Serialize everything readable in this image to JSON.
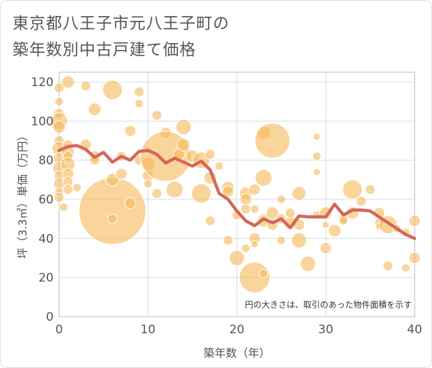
{
  "title_lines": [
    "東京都八王子市元八王子町の",
    "築年数別中古戸建て価格"
  ],
  "note": "円の大きさは、取引のあった物件面積を示す",
  "colors": {
    "bubble_fill": "#f5b95a",
    "bubble_opacity": 0.6,
    "line": "#d4675a",
    "grid": "#d4dce6",
    "plot_border": "#b0b8c4"
  },
  "chart_data": {
    "type": "scatter",
    "title": "東京都八王子市元八王子町の築年数別中古戸建て価格",
    "xlabel": "築年数（年）",
    "ylabel": "坪（3.3㎡）単価（万円）",
    "xlim": [
      0,
      40
    ],
    "ylim": [
      0,
      125
    ],
    "xticks": [
      0,
      10,
      20,
      30,
      40
    ],
    "yticks": [
      0,
      20,
      40,
      60,
      80,
      100,
      120
    ],
    "grid": true,
    "bubbles": [
      {
        "x": 0,
        "y": 117,
        "r": 7
      },
      {
        "x": 0,
        "y": 110,
        "r": 6
      },
      {
        "x": 0,
        "y": 104,
        "r": 7
      },
      {
        "x": 0,
        "y": 100,
        "r": 12
      },
      {
        "x": 0,
        "y": 97,
        "r": 9
      },
      {
        "x": 0,
        "y": 90,
        "r": 7
      },
      {
        "x": 0,
        "y": 86,
        "r": 10
      },
      {
        "x": 0,
        "y": 81,
        "r": 8
      },
      {
        "x": 0,
        "y": 76,
        "r": 9
      },
      {
        "x": 0,
        "y": 72,
        "r": 7
      },
      {
        "x": 0,
        "y": 68,
        "r": 8
      },
      {
        "x": 0,
        "y": 64,
        "r": 6
      },
      {
        "x": 0,
        "y": 61,
        "r": 7
      },
      {
        "x": 0.5,
        "y": 56,
        "r": 6
      },
      {
        "x": 1,
        "y": 120,
        "r": 9
      },
      {
        "x": 1,
        "y": 88,
        "r": 7
      },
      {
        "x": 1,
        "y": 84,
        "r": 9
      },
      {
        "x": 1,
        "y": 82,
        "r": 7
      },
      {
        "x": 1,
        "y": 78,
        "r": 10
      },
      {
        "x": 1,
        "y": 73,
        "r": 8
      },
      {
        "x": 1,
        "y": 69,
        "r": 7
      },
      {
        "x": 1,
        "y": 65,
        "r": 7
      },
      {
        "x": 2,
        "y": 66,
        "r": 6
      },
      {
        "x": 3,
        "y": 118,
        "r": 7
      },
      {
        "x": 3,
        "y": 88,
        "r": 8
      },
      {
        "x": 4,
        "y": 82,
        "r": 8
      },
      {
        "x": 4,
        "y": 80,
        "r": 7
      },
      {
        "x": 4,
        "y": 106,
        "r": 9
      },
      {
        "x": 6,
        "y": 116,
        "r": 14
      },
      {
        "x": 6,
        "y": 54,
        "r": 48
      },
      {
        "x": 6,
        "y": 70,
        "r": 9
      },
      {
        "x": 6,
        "y": 50,
        "r": 7
      },
      {
        "x": 7,
        "y": 82,
        "r": 7
      },
      {
        "x": 7,
        "y": 73,
        "r": 8
      },
      {
        "x": 8,
        "y": 95,
        "r": 8
      },
      {
        "x": 8,
        "y": 58,
        "r": 8
      },
      {
        "x": 9,
        "y": 115,
        "r": 7
      },
      {
        "x": 9,
        "y": 109,
        "r": 6
      },
      {
        "x": 9,
        "y": 80,
        "r": 7
      },
      {
        "x": 10,
        "y": 78,
        "r": 10
      },
      {
        "x": 10,
        "y": 72,
        "r": 8
      },
      {
        "x": 10,
        "y": 68,
        "r": 6
      },
      {
        "x": 11,
        "y": 103,
        "r": 7
      },
      {
        "x": 11,
        "y": 63,
        "r": 7
      },
      {
        "x": 12,
        "y": 94,
        "r": 8
      },
      {
        "x": 12,
        "y": 82,
        "r": 36
      },
      {
        "x": 13,
        "y": 65,
        "r": 12
      },
      {
        "x": 13.5,
        "y": 83,
        "r": 8
      },
      {
        "x": 14,
        "y": 97,
        "r": 11
      },
      {
        "x": 14,
        "y": 88,
        "r": 9
      },
      {
        "x": 15,
        "y": 82,
        "r": 9
      },
      {
        "x": 16,
        "y": 80,
        "r": 12
      },
      {
        "x": 16,
        "y": 63,
        "r": 14
      },
      {
        "x": 17,
        "y": 71,
        "r": 9
      },
      {
        "x": 17,
        "y": 49,
        "r": 7
      },
      {
        "x": 17,
        "y": 83,
        "r": 7
      },
      {
        "x": 18,
        "y": 77,
        "r": 6
      },
      {
        "x": 19,
        "y": 66,
        "r": 9
      },
      {
        "x": 19,
        "y": 64,
        "r": 8
      },
      {
        "x": 19,
        "y": 39,
        "r": 7
      },
      {
        "x": 20,
        "y": 30,
        "r": 11
      },
      {
        "x": 20,
        "y": 52,
        "r": 7
      },
      {
        "x": 21,
        "y": 63,
        "r": 9
      },
      {
        "x": 21,
        "y": 60,
        "r": 8
      },
      {
        "x": 21,
        "y": 55,
        "r": 7
      },
      {
        "x": 21,
        "y": 35,
        "r": 6
      },
      {
        "x": 22,
        "y": 20,
        "r": 22
      },
      {
        "x": 22,
        "y": 40,
        "r": 8
      },
      {
        "x": 22,
        "y": 37,
        "r": 5
      },
      {
        "x": 22,
        "y": 55,
        "r": 6
      },
      {
        "x": 22,
        "y": 65,
        "r": 8
      },
      {
        "x": 23,
        "y": 94,
        "r": 10
      },
      {
        "x": 23,
        "y": 71,
        "r": 12
      },
      {
        "x": 23,
        "y": 49,
        "r": 9
      },
      {
        "x": 23,
        "y": 22,
        "r": 6
      },
      {
        "x": 24,
        "y": 90,
        "r": 25
      },
      {
        "x": 24,
        "y": 53,
        "r": 9
      },
      {
        "x": 24,
        "y": 47,
        "r": 8
      },
      {
        "x": 25,
        "y": 60,
        "r": 6
      },
      {
        "x": 25,
        "y": 39,
        "r": 6
      },
      {
        "x": 25,
        "y": 50,
        "r": 7
      },
      {
        "x": 26,
        "y": 48,
        "r": 9
      },
      {
        "x": 26,
        "y": 53,
        "r": 7
      },
      {
        "x": 27,
        "y": 63,
        "r": 10
      },
      {
        "x": 27,
        "y": 47,
        "r": 8
      },
      {
        "x": 27,
        "y": 39,
        "r": 11
      },
      {
        "x": 28,
        "y": 27,
        "r": 11
      },
      {
        "x": 29,
        "y": 92,
        "r": 5
      },
      {
        "x": 29,
        "y": 82,
        "r": 6
      },
      {
        "x": 29,
        "y": 74,
        "r": 5
      },
      {
        "x": 29,
        "y": 52,
        "r": 6
      },
      {
        "x": 30,
        "y": 53,
        "r": 9
      },
      {
        "x": 30,
        "y": 47,
        "r": 5
      },
      {
        "x": 30,
        "y": 35,
        "r": 8
      },
      {
        "x": 31,
        "y": 44,
        "r": 9
      },
      {
        "x": 32,
        "y": 50,
        "r": 7
      },
      {
        "x": 32,
        "y": 49,
        "r": 6
      },
      {
        "x": 33,
        "y": 65,
        "r": 14
      },
      {
        "x": 33,
        "y": 53,
        "r": 9
      },
      {
        "x": 34,
        "y": 59,
        "r": 7
      },
      {
        "x": 35,
        "y": 65,
        "r": 7
      },
      {
        "x": 36,
        "y": 53,
        "r": 8
      },
      {
        "x": 36,
        "y": 48,
        "r": 6
      },
      {
        "x": 36,
        "y": 46,
        "r": 5
      },
      {
        "x": 37,
        "y": 47,
        "r": 13
      },
      {
        "x": 37,
        "y": 26,
        "r": 7
      },
      {
        "x": 38,
        "y": 45,
        "r": 6
      },
      {
        "x": 39,
        "y": 25,
        "r": 6
      },
      {
        "x": 39,
        "y": 43,
        "r": 6
      },
      {
        "x": 40,
        "y": 49,
        "r": 8
      },
      {
        "x": 40,
        "y": 30,
        "r": 8
      }
    ],
    "trend": [
      {
        "x": 0,
        "y": 85
      },
      {
        "x": 1,
        "y": 87
      },
      {
        "x": 2,
        "y": 87.5
      },
      {
        "x": 3,
        "y": 85.5
      },
      {
        "x": 4,
        "y": 81.5
      },
      {
        "x": 5,
        "y": 84
      },
      {
        "x": 6,
        "y": 79
      },
      {
        "x": 7,
        "y": 82
      },
      {
        "x": 8,
        "y": 80
      },
      {
        "x": 9,
        "y": 84.5
      },
      {
        "x": 10,
        "y": 85
      },
      {
        "x": 11,
        "y": 83
      },
      {
        "x": 12,
        "y": 78.5
      },
      {
        "x": 13,
        "y": 81
      },
      {
        "x": 14,
        "y": 79
      },
      {
        "x": 15,
        "y": 77
      },
      {
        "x": 16,
        "y": 79.5
      },
      {
        "x": 17,
        "y": 75
      },
      {
        "x": 18,
        "y": 63
      },
      {
        "x": 19,
        "y": 60
      },
      {
        "x": 20,
        "y": 54
      },
      {
        "x": 21,
        "y": 49
      },
      {
        "x": 22,
        "y": 46.5
      },
      {
        "x": 23,
        "y": 50
      },
      {
        "x": 24,
        "y": 48
      },
      {
        "x": 25,
        "y": 50
      },
      {
        "x": 26,
        "y": 45.5
      },
      {
        "x": 27,
        "y": 51.5
      },
      {
        "x": 28,
        "y": 51
      },
      {
        "x": 29,
        "y": 51
      },
      {
        "x": 30,
        "y": 51
      },
      {
        "x": 31,
        "y": 57.5
      },
      {
        "x": 32,
        "y": 52
      },
      {
        "x": 33,
        "y": 54.5
      },
      {
        "x": 34,
        "y": 54.5
      },
      {
        "x": 35,
        "y": 54
      },
      {
        "x": 36,
        "y": 51
      },
      {
        "x": 37,
        "y": 48
      },
      {
        "x": 38,
        "y": 45
      },
      {
        "x": 39,
        "y": 42
      },
      {
        "x": 40,
        "y": 40
      }
    ]
  }
}
